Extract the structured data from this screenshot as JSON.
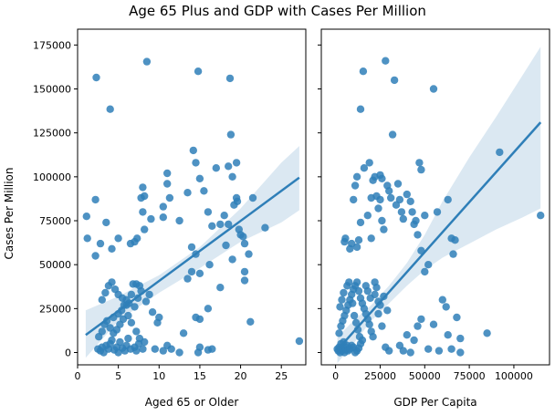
{
  "chart_data": {
    "type": "scatter",
    "title": "Age 65 Plus and GDP with Cases Per Million",
    "ylabel": "Cases Per Million",
    "ylim": [
      -7000,
      184000
    ],
    "yticks": [
      0,
      25000,
      50000,
      75000,
      100000,
      125000,
      150000,
      175000
    ],
    "colors": {
      "points": "#2f7fb8",
      "line": "#2f7fb8",
      "band": "#cfe0ee"
    },
    "panels": [
      {
        "xlabel": "Aged 65 or Older",
        "xlim": [
          0,
          28
        ],
        "xticks": [
          0,
          5,
          10,
          15,
          20,
          25
        ],
        "regression": {
          "x": [
            1,
            27.2
          ],
          "y": [
            10000,
            99500
          ]
        },
        "band": {
          "x": [
            1,
            5,
            10,
            15,
            20,
            25,
            27.2
          ],
          "lower": [
            -3000,
            18000,
            34000,
            48000,
            63000,
            74000,
            81000
          ],
          "upper": [
            24000,
            32000,
            44000,
            60000,
            82000,
            108000,
            117500
          ]
        },
        "points": [
          [
            1.1,
            77500
          ],
          [
            1.2,
            65000
          ],
          [
            2.2,
            87000
          ],
          [
            2.3,
            156500
          ],
          [
            2.2,
            55000
          ],
          [
            2.8,
            62000
          ],
          [
            3.5,
            74000
          ],
          [
            4.0,
            138500
          ],
          [
            4.2,
            59000
          ],
          [
            5.0,
            65000
          ],
          [
            6.5,
            62000
          ],
          [
            7.0,
            63000
          ],
          [
            7.3,
            65000
          ],
          [
            7.8,
            88000
          ],
          [
            8.2,
            89000
          ],
          [
            8.0,
            80000
          ],
          [
            8.5,
            165500
          ],
          [
            8.0,
            94000
          ],
          [
            9.0,
            76000
          ],
          [
            8.2,
            70000
          ],
          [
            10.5,
            77000
          ],
          [
            10.5,
            83000
          ],
          [
            11.0,
            102000
          ],
          [
            11.0,
            96000
          ],
          [
            11.3,
            88000
          ],
          [
            12.5,
            75000
          ],
          [
            13.5,
            91000
          ],
          [
            14.0,
            60000
          ],
          [
            14.2,
            115000
          ],
          [
            14.5,
            108000
          ],
          [
            14.8,
            160000
          ],
          [
            15.0,
            99000
          ],
          [
            15.5,
            92000
          ],
          [
            16.0,
            80000
          ],
          [
            16.5,
            72000
          ],
          [
            17.0,
            105000
          ],
          [
            17.5,
            73000
          ],
          [
            18.0,
            78000
          ],
          [
            18.5,
            106000
          ],
          [
            18.8,
            124000
          ],
          [
            18.7,
            156000
          ],
          [
            19.0,
            100000
          ],
          [
            19.5,
            108000
          ],
          [
            19.5,
            88000
          ],
          [
            19.6,
            86000
          ],
          [
            19.2,
            84000
          ],
          [
            18.5,
            73000
          ],
          [
            18.2,
            61000
          ],
          [
            19.8,
            70000
          ],
          [
            20.0,
            67000
          ],
          [
            20.3,
            66000
          ],
          [
            20.5,
            62000
          ],
          [
            21.0,
            56000
          ],
          [
            20.5,
            46000
          ],
          [
            21.5,
            88000
          ],
          [
            23.0,
            71000
          ],
          [
            21.2,
            17500
          ],
          [
            27.2,
            6500
          ],
          [
            14.5,
            56000
          ],
          [
            14.0,
            46000
          ],
          [
            13.5,
            42000
          ],
          [
            15.0,
            45000
          ],
          [
            16.2,
            50000
          ],
          [
            17.5,
            37000
          ],
          [
            19.0,
            53000
          ],
          [
            20.5,
            41000
          ],
          [
            16.0,
            25000
          ],
          [
            13.0,
            11000
          ],
          [
            14.5,
            20000
          ],
          [
            15.0,
            19000
          ],
          [
            11.0,
            4000
          ],
          [
            10.5,
            1000
          ],
          [
            9.5,
            2000
          ],
          [
            12.5,
            0
          ],
          [
            15.0,
            3000
          ],
          [
            16.0,
            1500
          ],
          [
            16.5,
            2000
          ],
          [
            14.8,
            0
          ],
          [
            11.5,
            2000
          ],
          [
            2.5,
            2000
          ],
          [
            2.8,
            1000
          ],
          [
            3.0,
            3000
          ],
          [
            3.2,
            0
          ],
          [
            3.5,
            4000
          ],
          [
            3.8,
            2000
          ],
          [
            4.0,
            5000
          ],
          [
            4.2,
            7000
          ],
          [
            4.5,
            1500
          ],
          [
            4.8,
            3000
          ],
          [
            5.0,
            0
          ],
          [
            5.2,
            6000
          ],
          [
            5.5,
            2500
          ],
          [
            5.8,
            1000
          ],
          [
            6.0,
            4000
          ],
          [
            6.2,
            8000
          ],
          [
            6.5,
            2000
          ],
          [
            7.0,
            3000
          ],
          [
            7.2,
            1000
          ],
          [
            7.5,
            5000
          ],
          [
            8.0,
            2000
          ],
          [
            2.6,
            9000
          ],
          [
            3.0,
            12000
          ],
          [
            3.3,
            16000
          ],
          [
            3.6,
            18000
          ],
          [
            4.0,
            14000
          ],
          [
            4.4,
            20000
          ],
          [
            5.0,
            22000
          ],
          [
            5.4,
            24000
          ],
          [
            5.7,
            27000
          ],
          [
            6.0,
            30000
          ],
          [
            6.3,
            28000
          ],
          [
            6.6,
            33000
          ],
          [
            7.0,
            26000
          ],
          [
            7.4,
            31000
          ],
          [
            7.8,
            35000
          ],
          [
            8.4,
            29000
          ],
          [
            8.8,
            33000
          ],
          [
            9.2,
            23000
          ],
          [
            9.8,
            17000
          ],
          [
            10.0,
            20000
          ],
          [
            3.0,
            30000
          ],
          [
            3.4,
            34000
          ],
          [
            3.8,
            38000
          ],
          [
            4.2,
            40000
          ],
          [
            4.6,
            36000
          ],
          [
            5.0,
            33000
          ],
          [
            5.5,
            31000
          ],
          [
            6.0,
            27000
          ],
          [
            6.8,
            39000
          ],
          [
            7.2,
            39000
          ],
          [
            7.6,
            38000
          ],
          [
            4.4,
            11000
          ],
          [
            4.8,
            13000
          ],
          [
            5.2,
            16000
          ],
          [
            5.6,
            19000
          ],
          [
            6.2,
            21000
          ],
          [
            6.6,
            17000
          ],
          [
            7.2,
            12000
          ],
          [
            7.6,
            8000
          ],
          [
            8.2,
            6000
          ]
        ]
      },
      {
        "xlabel": "GDP Per Capita",
        "xlim": [
          -8000,
          120000
        ],
        "xticks": [
          0,
          25000,
          50000,
          75000,
          100000
        ],
        "regression": {
          "x": [
            1000,
            115000
          ],
          "y": [
            1500,
            131000
          ]
        },
        "band": {
          "x": [
            1000,
            10000,
            20000,
            30000,
            40000,
            50000,
            60000,
            75000,
            90000,
            105000,
            115000
          ],
          "lower": [
            -6000,
            5000,
            18000,
            28000,
            38000,
            47000,
            54000,
            62000,
            70000,
            77000,
            82000
          ],
          "upper": [
            9000,
            18000,
            27000,
            38000,
            51000,
            67000,
            86000,
            111000,
            134000,
            158000,
            174000
          ]
        },
        "points": [
          [
            5000,
            63000
          ],
          [
            5500,
            65000
          ],
          [
            8000,
            59000
          ],
          [
            9000,
            62000
          ],
          [
            12000,
            60000
          ],
          [
            13000,
            64000
          ],
          [
            14000,
            74000
          ],
          [
            14000,
            138500
          ],
          [
            15500,
            160000
          ],
          [
            20000,
            65000
          ],
          [
            18000,
            78000
          ],
          [
            20000,
            88000
          ],
          [
            22000,
            100000
          ],
          [
            23000,
            89000
          ],
          [
            24000,
            82000
          ],
          [
            25000,
            87000
          ],
          [
            25000,
            101000
          ],
          [
            26000,
            75000
          ],
          [
            27000,
            70000
          ],
          [
            28000,
            166000
          ],
          [
            30000,
            92000
          ],
          [
            31000,
            88000
          ],
          [
            32000,
            124000
          ],
          [
            33000,
            155000
          ],
          [
            35000,
            96000
          ],
          [
            36000,
            87000
          ],
          [
            37000,
            80000
          ],
          [
            38000,
            76000
          ],
          [
            40000,
            90000
          ],
          [
            42000,
            86000
          ],
          [
            43000,
            80000
          ],
          [
            45000,
            75000
          ],
          [
            47000,
            108000
          ],
          [
            48000,
            104000
          ],
          [
            50000,
            78000
          ],
          [
            55000,
            150000
          ],
          [
            57000,
            80000
          ],
          [
            63000,
            87000
          ],
          [
            65000,
            65000
          ],
          [
            92000,
            114000
          ],
          [
            115000,
            78000
          ],
          [
            10000,
            87000
          ],
          [
            11000,
            95000
          ],
          [
            12000,
            100000
          ],
          [
            16000,
            105000
          ],
          [
            19000,
            108000
          ],
          [
            21000,
            98000
          ],
          [
            26000,
            99000
          ],
          [
            29000,
            95000
          ],
          [
            34000,
            84000
          ],
          [
            44000,
            73000
          ],
          [
            46000,
            67000
          ],
          [
            48000,
            58000
          ],
          [
            52000,
            50000
          ],
          [
            50000,
            46000
          ],
          [
            60000,
            30000
          ],
          [
            62000,
            26000
          ],
          [
            66000,
            56000
          ],
          [
            68000,
            20000
          ],
          [
            70000,
            8000
          ],
          [
            48000,
            19000
          ],
          [
            46000,
            15000
          ],
          [
            38000,
            1000
          ],
          [
            36000,
            4000
          ],
          [
            40000,
            10000
          ],
          [
            42000,
            0
          ],
          [
            44000,
            7000
          ],
          [
            52000,
            2000
          ],
          [
            55000,
            16000
          ],
          [
            58000,
            1000
          ],
          [
            63000,
            10000
          ],
          [
            70000,
            0
          ],
          [
            85000,
            11000
          ],
          [
            67000,
            64000
          ],
          [
            65000,
            2000
          ],
          [
            30000,
            1000
          ],
          [
            28000,
            3000
          ],
          [
            26000,
            15000
          ],
          [
            24000,
            29000
          ],
          [
            22000,
            33000
          ],
          [
            1000,
            2000
          ],
          [
            1500,
            1000
          ],
          [
            2000,
            3000
          ],
          [
            2500,
            0
          ],
          [
            3000,
            5000
          ],
          [
            3500,
            1000
          ],
          [
            4000,
            2000
          ],
          [
            4500,
            6000
          ],
          [
            5000,
            0
          ],
          [
            5500,
            3000
          ],
          [
            6000,
            1500
          ],
          [
            6500,
            4000
          ],
          [
            7000,
            1000
          ],
          [
            8000,
            2000
          ],
          [
            9000,
            4000
          ],
          [
            10000,
            3000
          ],
          [
            11000,
            0
          ],
          [
            12000,
            1000
          ],
          [
            13000,
            2500
          ],
          [
            14000,
            5000
          ],
          [
            2000,
            11000
          ],
          [
            3000,
            15000
          ],
          [
            4000,
            18000
          ],
          [
            5000,
            21000
          ],
          [
            6000,
            24000
          ],
          [
            7000,
            27000
          ],
          [
            8000,
            30000
          ],
          [
            9000,
            33000
          ],
          [
            10000,
            36000
          ],
          [
            11000,
            38000
          ],
          [
            12000,
            40000
          ],
          [
            13000,
            35000
          ],
          [
            14000,
            31000
          ],
          [
            15000,
            28000
          ],
          [
            16000,
            25000
          ],
          [
            17000,
            22000
          ],
          [
            18000,
            19000
          ],
          [
            19000,
            16000
          ],
          [
            20000,
            12000
          ],
          [
            21000,
            9000
          ],
          [
            2500,
            26000
          ],
          [
            3500,
            30000
          ],
          [
            4500,
            34000
          ],
          [
            6500,
            38000
          ],
          [
            7500,
            40000
          ],
          [
            9500,
            28000
          ],
          [
            10500,
            21000
          ],
          [
            11500,
            17000
          ],
          [
            12500,
            13000
          ],
          [
            13500,
            9000
          ],
          [
            15000,
            7000
          ],
          [
            17000,
            38000
          ],
          [
            18000,
            35000
          ],
          [
            19500,
            31000
          ],
          [
            22000,
            40000
          ],
          [
            23000,
            37000
          ],
          [
            24000,
            22000
          ],
          [
            25000,
            27000
          ],
          [
            27000,
            32000
          ],
          [
            29000,
            24000
          ]
        ]
      }
    ]
  }
}
